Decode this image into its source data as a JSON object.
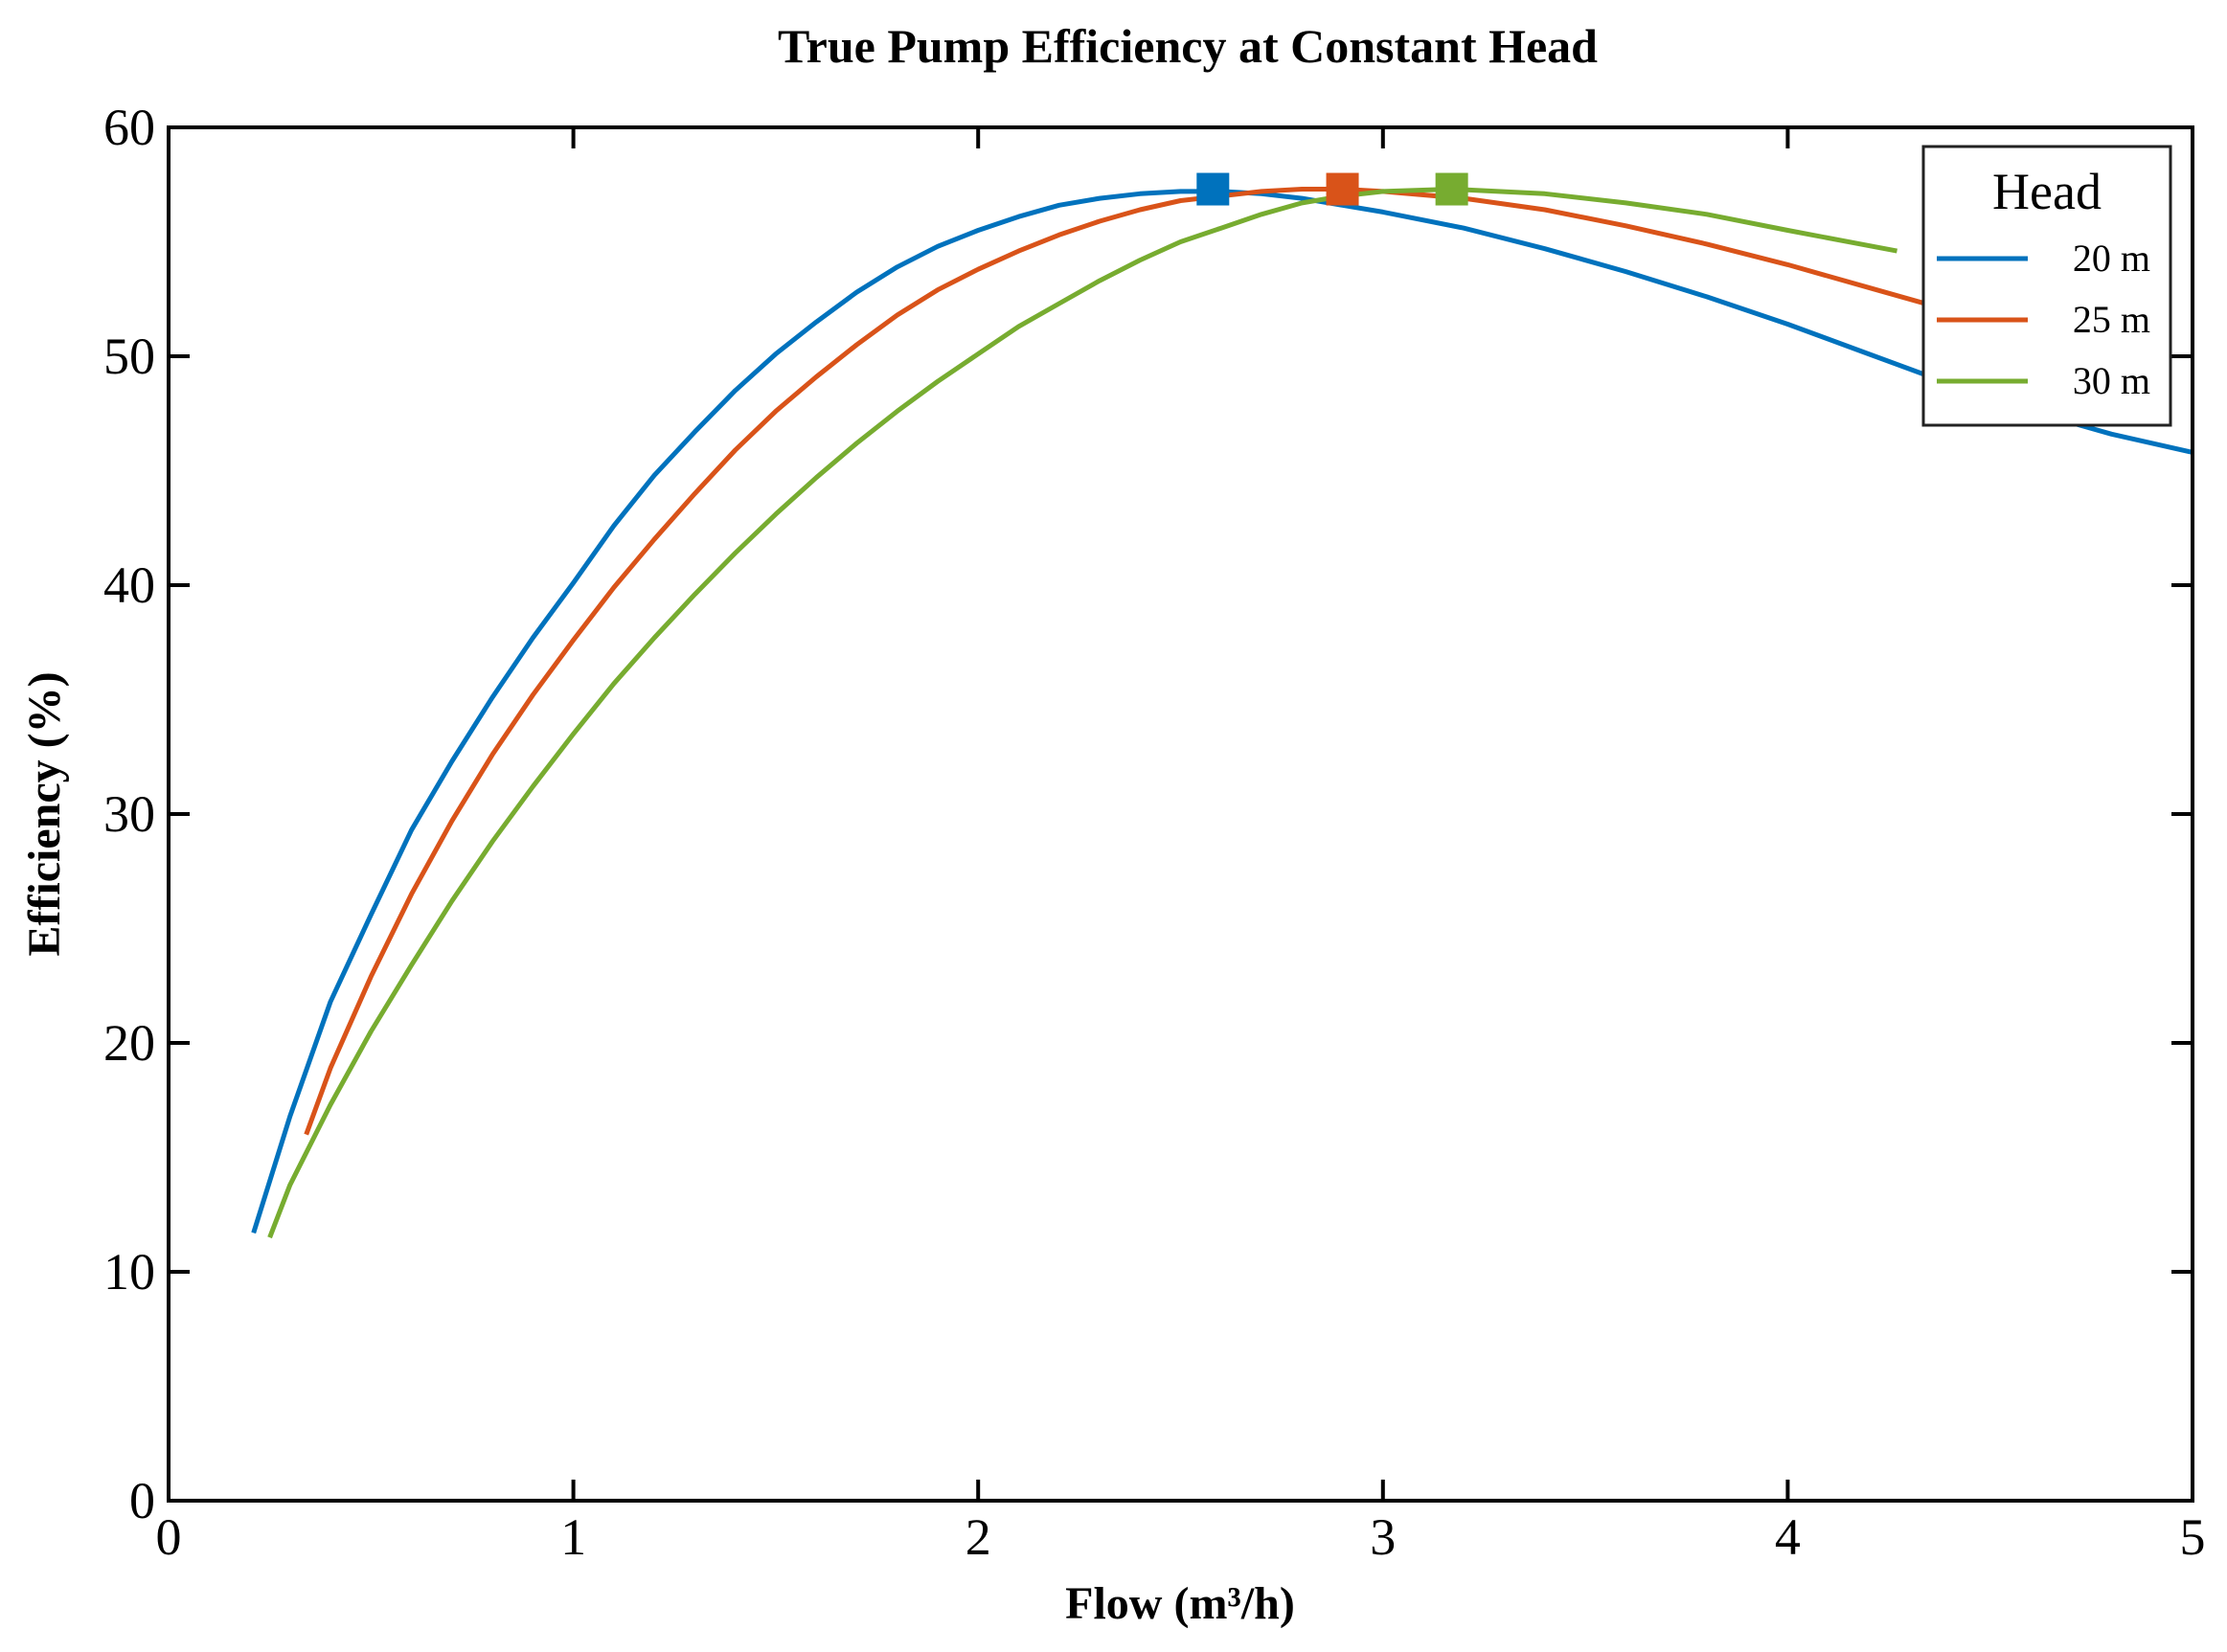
{
  "chart_data": {
    "type": "line",
    "title": "True Pump Efficiency at Constant Head",
    "xlabel": "Flow (m³/h)",
    "ylabel": "Efficiency (%)",
    "xlim": [
      0,
      5
    ],
    "ylim": [
      0,
      60
    ],
    "xticks": [
      0,
      1,
      2,
      3,
      4,
      5
    ],
    "yticks": [
      0,
      10,
      20,
      30,
      40,
      50,
      60
    ],
    "x_tick_labels": [
      "0",
      "1",
      "2",
      "3",
      "4",
      "5"
    ],
    "y_tick_labels": [
      "0",
      "10",
      "20",
      "30",
      "40",
      "50",
      "60"
    ],
    "grid": false,
    "legend": {
      "title": "Head",
      "placement": "top-right"
    },
    "series": [
      {
        "name": "20 m",
        "color": "#0072BD",
        "x": [
          0.21,
          0.3,
          0.4,
          0.5,
          0.6,
          0.7,
          0.8,
          0.9,
          1.0,
          1.1,
          1.2,
          1.3,
          1.4,
          1.5,
          1.6,
          1.7,
          1.8,
          1.9,
          2.0,
          2.1,
          2.2,
          2.3,
          2.4,
          2.5,
          2.6,
          2.7,
          2.8,
          2.9,
          3.0,
          3.2,
          3.4,
          3.6,
          3.8,
          4.0,
          4.2,
          4.4,
          4.6,
          4.8,
          5.0
        ],
        "y": [
          11.7,
          16.8,
          21.8,
          25.6,
          29.3,
          32.3,
          35.1,
          37.7,
          40.1,
          42.6,
          44.8,
          46.7,
          48.5,
          50.1,
          51.5,
          52.8,
          53.9,
          54.8,
          55.5,
          56.1,
          56.6,
          56.9,
          57.1,
          57.2,
          57.2,
          57.1,
          56.9,
          56.6,
          56.3,
          55.6,
          54.7,
          53.7,
          52.6,
          51.4,
          50.1,
          48.8,
          47.6,
          46.6,
          45.8
        ],
        "peak": {
          "x": 2.58,
          "y": 57.3
        }
      },
      {
        "name": "25 m",
        "color": "#D95319",
        "x": [
          0.34,
          0.4,
          0.5,
          0.6,
          0.7,
          0.8,
          0.9,
          1.0,
          1.1,
          1.2,
          1.3,
          1.4,
          1.5,
          1.6,
          1.7,
          1.8,
          1.9,
          2.0,
          2.1,
          2.2,
          2.3,
          2.4,
          2.5,
          2.6,
          2.7,
          2.8,
          2.9,
          3.0,
          3.2,
          3.4,
          3.6,
          3.8,
          4.0,
          4.2,
          4.4,
          4.64
        ],
        "y": [
          16.0,
          18.9,
          22.9,
          26.5,
          29.7,
          32.6,
          35.2,
          37.6,
          39.9,
          42.0,
          44.0,
          45.9,
          47.6,
          49.1,
          50.5,
          51.8,
          52.9,
          53.8,
          54.6,
          55.3,
          55.9,
          56.4,
          56.8,
          57.0,
          57.2,
          57.3,
          57.3,
          57.2,
          56.9,
          56.4,
          55.7,
          54.9,
          54.0,
          53.0,
          52.0,
          50.9
        ],
        "peak": {
          "x": 2.9,
          "y": 57.3
        }
      },
      {
        "name": "30 m",
        "color": "#77AC30",
        "x": [
          0.25,
          0.3,
          0.4,
          0.5,
          0.6,
          0.7,
          0.8,
          0.9,
          1.0,
          1.1,
          1.2,
          1.3,
          1.4,
          1.5,
          1.6,
          1.7,
          1.8,
          1.9,
          2.0,
          2.1,
          2.2,
          2.3,
          2.4,
          2.5,
          2.6,
          2.7,
          2.8,
          2.9,
          3.0,
          3.17,
          3.4,
          3.6,
          3.8,
          4.0,
          4.27
        ],
        "y": [
          11.5,
          13.8,
          17.3,
          20.5,
          23.4,
          26.2,
          28.8,
          31.2,
          33.5,
          35.7,
          37.7,
          39.6,
          41.4,
          43.1,
          44.7,
          46.2,
          47.6,
          48.9,
          50.1,
          51.3,
          52.3,
          53.3,
          54.2,
          55.0,
          55.6,
          56.2,
          56.7,
          57.0,
          57.2,
          57.3,
          57.1,
          56.7,
          56.2,
          55.5,
          54.6
        ],
        "peak": {
          "x": 3.17,
          "y": 57.3
        }
      }
    ]
  }
}
